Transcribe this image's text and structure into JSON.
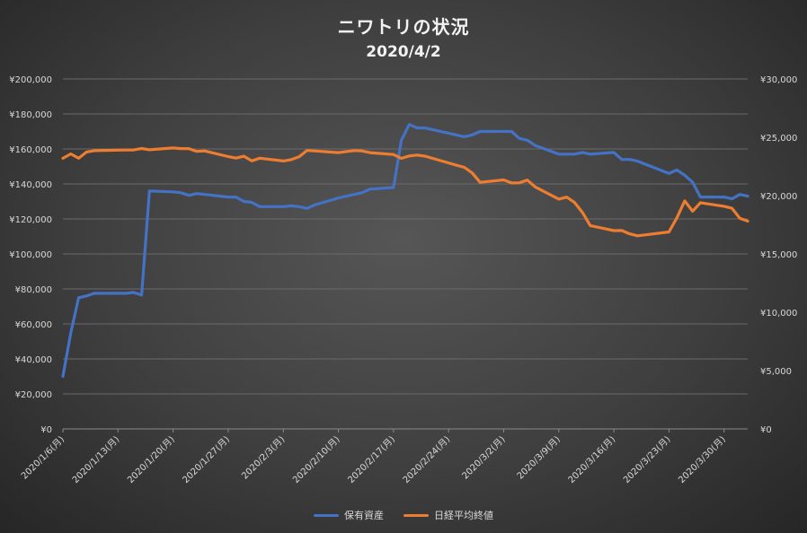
{
  "chart_data": {
    "type": "line",
    "title": "ニワトリの状況",
    "subtitle": "2020/4/2",
    "grid": true,
    "legend_position": "bottom",
    "x_tick_labels": [
      "2020/1/6(月)",
      "2020/1/13(月)",
      "2020/1/20(月)",
      "2020/1/27(月)",
      "2020/2/3(月)",
      "2020/2/10(月)",
      "2020/2/17(月)",
      "2020/2/24(月)",
      "2020/3/2(月)",
      "2020/3/9(月)",
      "2020/3/16(月)",
      "2020/3/23(月)",
      "2020/3/30(月)"
    ],
    "x_range": [
      "2020-01-06",
      "2020-04-02"
    ],
    "y_left": {
      "ylim": [
        0,
        200000
      ],
      "ticks": [
        "¥0",
        "¥20,000",
        "¥40,000",
        "¥60,000",
        "¥80,000",
        "¥100,000",
        "¥120,000",
        "¥140,000",
        "¥160,000",
        "¥180,000",
        "¥200,000"
      ]
    },
    "y_right": {
      "ylim": [
        0,
        30000
      ],
      "ticks": [
        "¥0",
        "¥5,000",
        "¥10,000",
        "¥15,000",
        "¥20,000",
        "¥25,000",
        "¥30,000"
      ]
    },
    "series": [
      {
        "name": "保有資産",
        "axis": "left",
        "color": "#4472c4",
        "points": [
          [
            "2020-01-06",
            30000
          ],
          [
            "2020-01-07",
            55000
          ],
          [
            "2020-01-08",
            75000
          ],
          [
            "2020-01-09",
            76000
          ],
          [
            "2020-01-10",
            77500
          ],
          [
            "2020-01-13",
            77500
          ],
          [
            "2020-01-14",
            77500
          ],
          [
            "2020-01-15",
            78000
          ],
          [
            "2020-01-16",
            76500
          ],
          [
            "2020-01-17",
            136000
          ],
          [
            "2020-01-20",
            135500
          ],
          [
            "2020-01-21",
            135000
          ],
          [
            "2020-01-22",
            133500
          ],
          [
            "2020-01-23",
            134500
          ],
          [
            "2020-01-24",
            134000
          ],
          [
            "2020-01-27",
            132500
          ],
          [
            "2020-01-28",
            132500
          ],
          [
            "2020-01-29",
            130000
          ],
          [
            "2020-01-30",
            129500
          ],
          [
            "2020-01-31",
            127000
          ],
          [
            "2020-02-03",
            127000
          ],
          [
            "2020-02-04",
            127500
          ],
          [
            "2020-02-05",
            127000
          ],
          [
            "2020-02-06",
            126000
          ],
          [
            "2020-02-07",
            128000
          ],
          [
            "2020-02-10",
            132000
          ],
          [
            "2020-02-12",
            134000
          ],
          [
            "2020-02-13",
            135000
          ],
          [
            "2020-02-14",
            137000
          ],
          [
            "2020-02-17",
            138000
          ],
          [
            "2020-02-18",
            165000
          ],
          [
            "2020-02-19",
            174000
          ],
          [
            "2020-02-20",
            172000
          ],
          [
            "2020-02-21",
            172000
          ],
          [
            "2020-02-25",
            168000
          ],
          [
            "2020-02-26",
            167000
          ],
          [
            "2020-02-27",
            168000
          ],
          [
            "2020-02-28",
            170000
          ],
          [
            "2020-03-02",
            170000
          ],
          [
            "2020-03-03",
            170000
          ],
          [
            "2020-03-04",
            166000
          ],
          [
            "2020-03-05",
            165000
          ],
          [
            "2020-03-06",
            162000
          ],
          [
            "2020-03-09",
            157000
          ],
          [
            "2020-03-10",
            157000
          ],
          [
            "2020-03-11",
            157000
          ],
          [
            "2020-03-12",
            158000
          ],
          [
            "2020-03-13",
            157000
          ],
          [
            "2020-03-16",
            158000
          ],
          [
            "2020-03-17",
            154000
          ],
          [
            "2020-03-18",
            154000
          ],
          [
            "2020-03-19",
            153000
          ],
          [
            "2020-03-23",
            146000
          ],
          [
            "2020-03-24",
            148000
          ],
          [
            "2020-03-25",
            145000
          ],
          [
            "2020-03-26",
            141000
          ],
          [
            "2020-03-27",
            132500
          ],
          [
            "2020-03-30",
            132500
          ],
          [
            "2020-03-31",
            131500
          ],
          [
            "2020-04-01",
            134000
          ],
          [
            "2020-04-02",
            133000
          ]
        ]
      },
      {
        "name": "日経平均終値",
        "axis": "right",
        "color": "#ed7d31",
        "points": [
          [
            "2020-01-06",
            23200
          ],
          [
            "2020-01-07",
            23575
          ],
          [
            "2020-01-08",
            23200
          ],
          [
            "2020-01-09",
            23740
          ],
          [
            "2020-01-10",
            23850
          ],
          [
            "2020-01-14",
            23916
          ],
          [
            "2020-01-15",
            23917
          ],
          [
            "2020-01-16",
            24041
          ],
          [
            "2020-01-17",
            23933
          ],
          [
            "2020-01-20",
            24083
          ],
          [
            "2020-01-21",
            24031
          ],
          [
            "2020-01-22",
            24031
          ],
          [
            "2020-01-23",
            23795
          ],
          [
            "2020-01-24",
            23827
          ],
          [
            "2020-01-27",
            23343
          ],
          [
            "2020-01-28",
            23216
          ],
          [
            "2020-01-29",
            23379
          ],
          [
            "2020-01-30",
            22977
          ],
          [
            "2020-01-31",
            23205
          ],
          [
            "2020-02-03",
            22971
          ],
          [
            "2020-02-04",
            23084
          ],
          [
            "2020-02-05",
            23320
          ],
          [
            "2020-02-06",
            23873
          ],
          [
            "2020-02-07",
            23827
          ],
          [
            "2020-02-10",
            23686
          ],
          [
            "2020-02-12",
            23861
          ],
          [
            "2020-02-13",
            23827
          ],
          [
            "2020-02-14",
            23687
          ],
          [
            "2020-02-17",
            23523
          ],
          [
            "2020-02-18",
            23194
          ],
          [
            "2020-02-19",
            23400
          ],
          [
            "2020-02-20",
            23479
          ],
          [
            "2020-02-21",
            23386
          ],
          [
            "2020-02-25",
            22605
          ],
          [
            "2020-02-26",
            22426
          ],
          [
            "2020-02-27",
            21948
          ],
          [
            "2020-02-28",
            21142
          ],
          [
            "2020-03-02",
            21344
          ],
          [
            "2020-03-03",
            21082
          ],
          [
            "2020-03-04",
            21100
          ],
          [
            "2020-03-05",
            21329
          ],
          [
            "2020-03-06",
            20749
          ],
          [
            "2020-03-09",
            19698
          ],
          [
            "2020-03-10",
            19867
          ],
          [
            "2020-03-11",
            19416
          ],
          [
            "2020-03-12",
            18559
          ],
          [
            "2020-03-13",
            17431
          ],
          [
            "2020-03-16",
            17002
          ],
          [
            "2020-03-17",
            17011
          ],
          [
            "2020-03-18",
            16726
          ],
          [
            "2020-03-19",
            16552
          ],
          [
            "2020-03-23",
            16887
          ],
          [
            "2020-03-24",
            18092
          ],
          [
            "2020-03-25",
            19546
          ],
          [
            "2020-03-26",
            18665
          ],
          [
            "2020-03-27",
            19389
          ],
          [
            "2020-03-30",
            19084
          ],
          [
            "2020-03-31",
            18917
          ],
          [
            "2020-04-01",
            18065
          ],
          [
            "2020-04-02",
            17819
          ]
        ]
      }
    ]
  }
}
